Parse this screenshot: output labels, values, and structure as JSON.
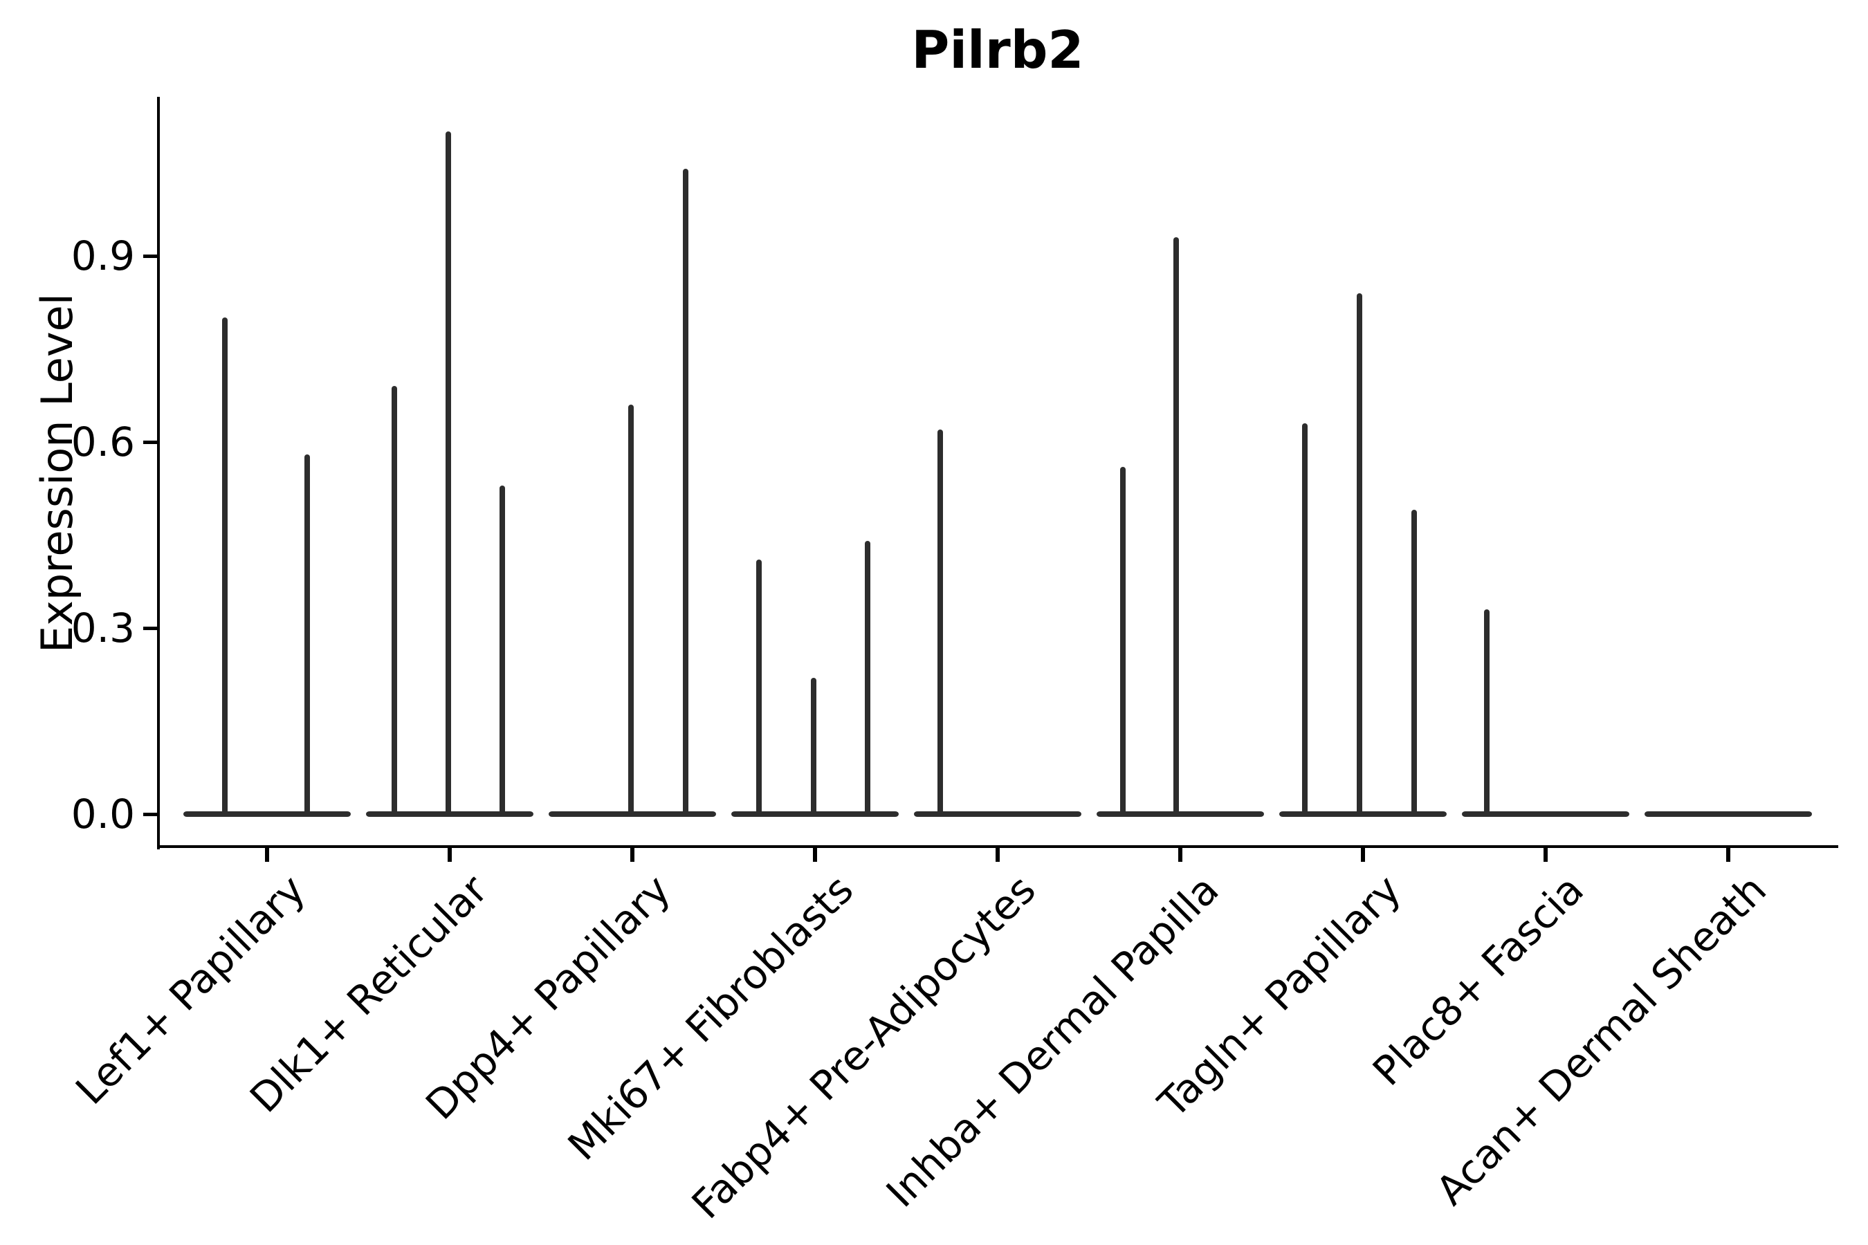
{
  "chart_data": {
    "type": "violin",
    "title": "Pilrb2",
    "ylabel": "Expression Level",
    "xlabel": "",
    "y_ticks": [
      "0.0",
      "0.3",
      "0.6",
      "0.9"
    ],
    "y_tick_values": [
      0.0,
      0.3,
      0.6,
      0.9
    ],
    "ylim": [
      0.0,
      1.16
    ],
    "grid": false,
    "legend": "none",
    "violin_color": "#2d2d2d",
    "axis_color": "#000000",
    "background_color": "#ffffff",
    "categories": [
      "Lef1+ Papillary",
      "Dlk1+ Reticular",
      "Dpp4+ Papillary",
      "Mki67+ Fibroblasts",
      "Fabp4+ Pre-Adipocytes",
      "Inhba+ Dermal Papilla",
      "Tagln+ Papillary",
      "Plac8+ Fascia",
      "Acan+ Dermal Sheath"
    ],
    "groups": [
      {
        "category": "Lef1+ Papillary",
        "base_half_width_frac": 0.458,
        "spikes": [
          {
            "x_offset_frac": -0.231,
            "value": 0.8
          },
          {
            "x_offset_frac": 0.22,
            "value": 0.58
          }
        ]
      },
      {
        "category": "Dlk1+ Reticular",
        "base_half_width_frac": 0.458,
        "spikes": [
          {
            "x_offset_frac": -0.303,
            "value": 0.69
          },
          {
            "x_offset_frac": -0.008,
            "value": 1.1
          },
          {
            "x_offset_frac": 0.288,
            "value": 0.53
          }
        ]
      },
      {
        "category": "Dpp4+ Papillary",
        "base_half_width_frac": 0.458,
        "spikes": [
          {
            "x_offset_frac": -0.008,
            "value": 0.66
          },
          {
            "x_offset_frac": 0.292,
            "value": 1.04
          }
        ]
      },
      {
        "category": "Mki67+ Fibroblasts",
        "base_half_width_frac": 0.458,
        "spikes": [
          {
            "x_offset_frac": -0.307,
            "value": 0.41
          },
          {
            "x_offset_frac": -0.008,
            "value": 0.22
          },
          {
            "x_offset_frac": 0.288,
            "value": 0.44
          }
        ]
      },
      {
        "category": "Fabp4+ Pre-Adipocytes",
        "base_half_width_frac": 0.458,
        "spikes": [
          {
            "x_offset_frac": -0.314,
            "value": 0.62
          }
        ]
      },
      {
        "category": "Inhba+ Dermal Papilla",
        "base_half_width_frac": 0.458,
        "spikes": [
          {
            "x_offset_frac": -0.314,
            "value": 0.56
          },
          {
            "x_offset_frac": -0.023,
            "value": 0.93
          }
        ]
      },
      {
        "category": "Tagln+ Papillary",
        "base_half_width_frac": 0.458,
        "spikes": [
          {
            "x_offset_frac": -0.318,
            "value": 0.63
          },
          {
            "x_offset_frac": -0.019,
            "value": 0.84
          },
          {
            "x_offset_frac": 0.28,
            "value": 0.49
          }
        ]
      },
      {
        "category": "Plac8+ Fascia",
        "base_half_width_frac": 0.458,
        "spikes": [
          {
            "x_offset_frac": -0.322,
            "value": 0.33
          }
        ]
      },
      {
        "category": "Acan+ Dermal Sheath",
        "base_half_width_frac": 0.458,
        "spikes": []
      }
    ]
  }
}
